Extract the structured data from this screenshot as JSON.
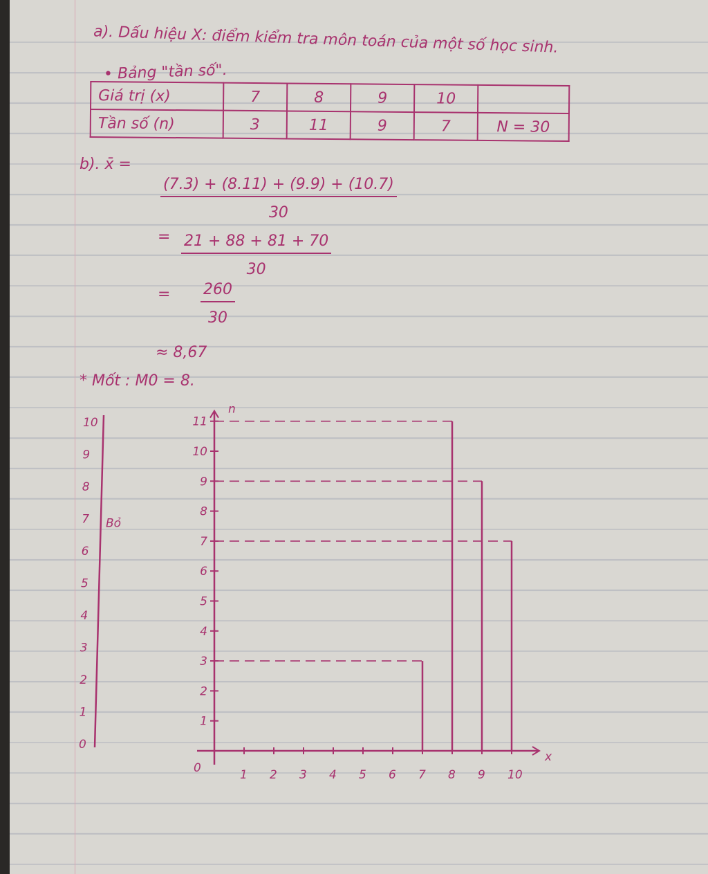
{
  "part_a": {
    "heading": "a). Dấu hiệu X: điểm kiểm tra môn toán của một số học sinh.",
    "table_title": "• Bảng \"tần số\".",
    "table": {
      "row_labels": [
        "Giá trị (x)",
        "Tần số (n)"
      ],
      "values_x": [
        "7",
        "8",
        "9",
        "10",
        ""
      ],
      "values_n": [
        "3",
        "11",
        "9",
        "7",
        "N = 30"
      ]
    }
  },
  "part_b": {
    "label": "b). x̄ =",
    "step1_num": "(7.3) + (8.11) + (9.9) + (10.7)",
    "step1_den": "30",
    "step2_num": "21 + 88 + 81 + 70",
    "step2_den": "30",
    "step3_num": "260",
    "step3_den": "30",
    "eq": "=",
    "approx": "≈ 8,67",
    "mode": "* Mốt : M0 = 8."
  },
  "left_scale": {
    "labels": [
      "10",
      "9",
      "8",
      "7",
      "6",
      "5",
      "4",
      "3",
      "2",
      "1",
      "0"
    ],
    "note": "Bỏ"
  },
  "chart_data": {
    "type": "bar",
    "style": "line segments with dashed guides",
    "x": [
      7,
      8,
      9,
      10
    ],
    "values": [
      3,
      11,
      9,
      7
    ],
    "xlabel": "x",
    "ylabel": "n",
    "origin_label": "0",
    "x_ticks": [
      "1",
      "2",
      "3",
      "4",
      "5",
      "6",
      "7",
      "8",
      "9",
      "10"
    ],
    "y_ticks": [
      "1",
      "2",
      "3",
      "4",
      "5",
      "6",
      "7",
      "8",
      "9",
      "10",
      "11"
    ],
    "xlim": [
      0,
      10
    ],
    "ylim": [
      0,
      11
    ],
    "ink_color": "#a8326e"
  }
}
